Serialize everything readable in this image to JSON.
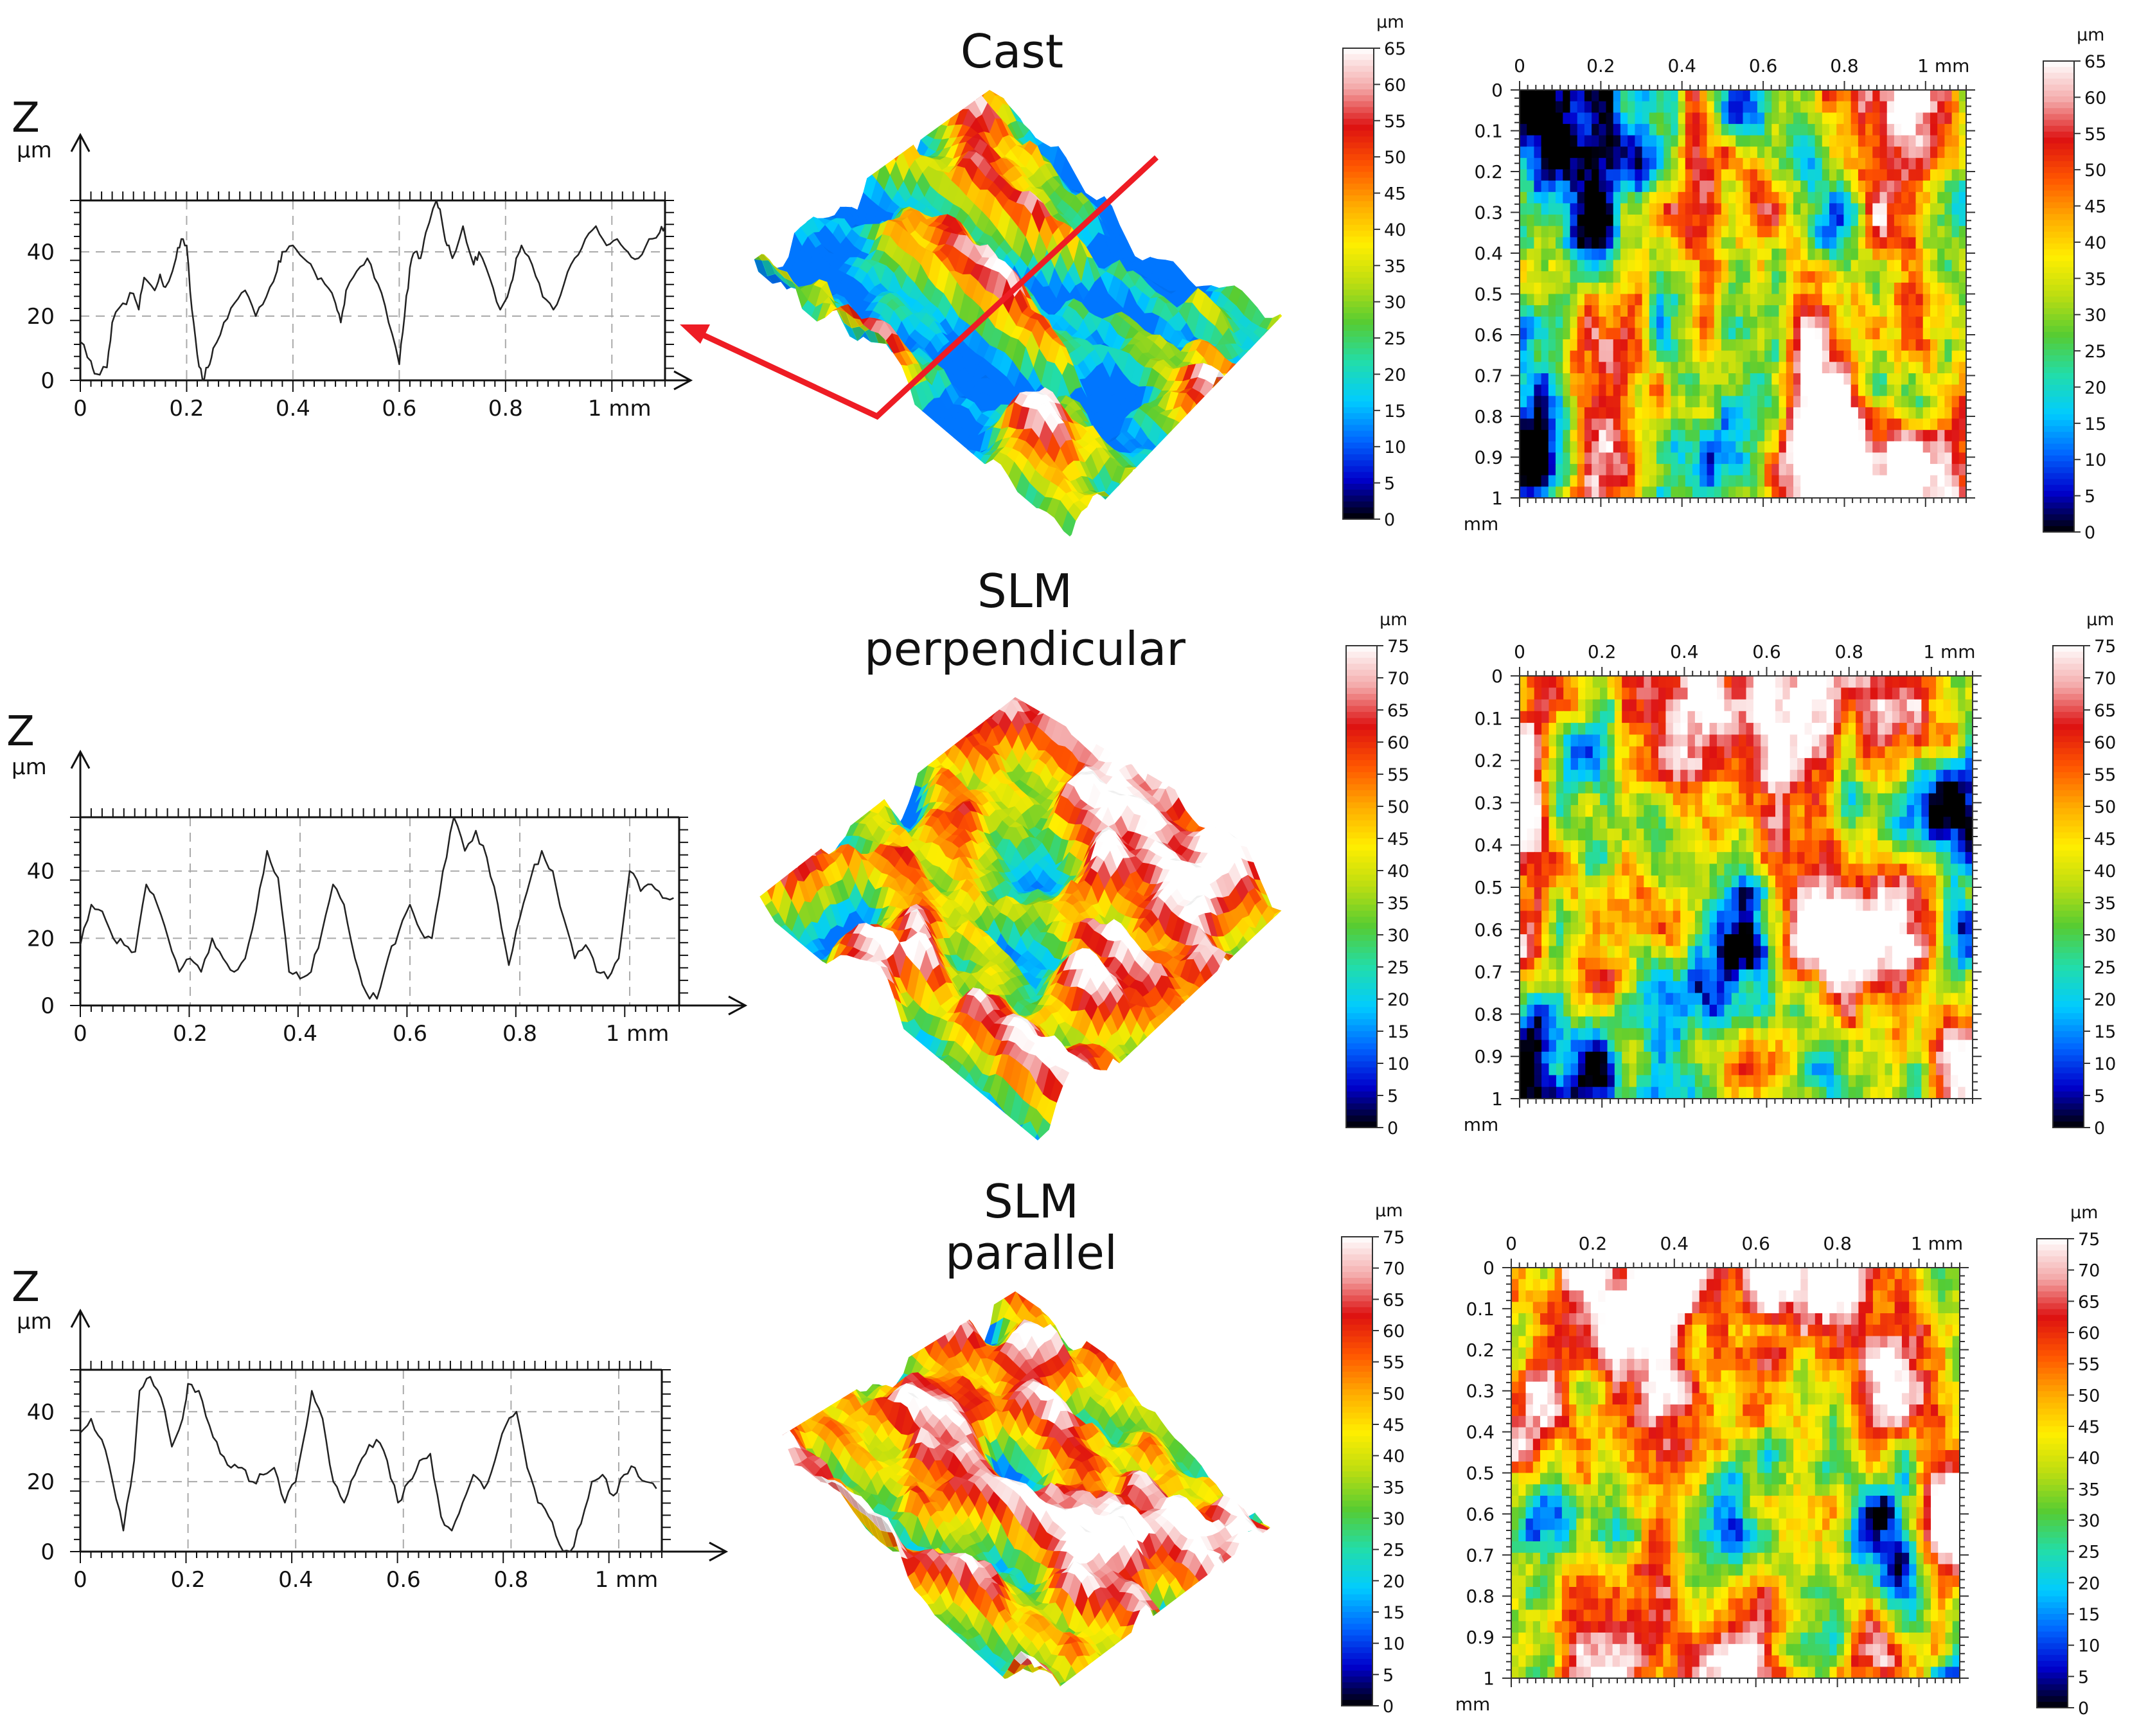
{
  "chart_data": [
    {
      "type": "line",
      "panel": "profile-cast",
      "title": "Cast",
      "ylabel": "Z",
      "yunit": "µm",
      "xlim": [
        0,
        1.1
      ],
      "ylim": [
        0,
        56
      ],
      "xticks": [
        0,
        0.2,
        0.4,
        0.6,
        0.8,
        1.0
      ],
      "xtick_labels": [
        "0",
        "0.2",
        "0.4",
        "0.6",
        "0.8",
        "1 mm"
      ],
      "yticks": [
        0,
        20,
        40
      ],
      "ytick_labels": [
        "0",
        "20",
        "40"
      ],
      "grid": true,
      "series": [
        {
          "x": [
            0,
            0.02,
            0.03,
            0.05,
            0.06,
            0.08,
            0.1,
            0.11,
            0.12,
            0.14,
            0.15,
            0.16,
            0.18,
            0.19,
            0.2,
            0.21,
            0.22,
            0.23,
            0.24,
            0.25,
            0.27,
            0.29,
            0.31,
            0.33,
            0.35,
            0.37,
            0.38,
            0.4,
            0.42,
            0.44,
            0.46,
            0.48,
            0.49,
            0.5,
            0.52,
            0.54,
            0.56,
            0.58,
            0.6,
            0.61,
            0.62,
            0.63,
            0.64,
            0.65,
            0.67,
            0.68,
            0.69,
            0.7,
            0.72,
            0.74,
            0.75,
            0.77,
            0.79,
            0.81,
            0.82,
            0.83,
            0.85,
            0.87,
            0.89,
            0.91,
            0.93,
            0.95,
            0.97,
            0.99,
            1.01,
            1.03,
            1.05,
            1.07,
            1.09,
            1.1
          ],
          "y": [
            12,
            6,
            2,
            4,
            18,
            24,
            27,
            22,
            32,
            28,
            33,
            29,
            38,
            44,
            42,
            22,
            8,
            0,
            4,
            10,
            18,
            24,
            28,
            20,
            26,
            34,
            40,
            42,
            38,
            34,
            30,
            24,
            18,
            28,
            34,
            38,
            30,
            18,
            5,
            20,
            35,
            40,
            38,
            46,
            56,
            50,
            42,
            38,
            48,
            36,
            40,
            32,
            22,
            30,
            38,
            42,
            36,
            26,
            22,
            30,
            38,
            44,
            48,
            42,
            44,
            40,
            38,
            44,
            46,
            48
          ]
        }
      ]
    },
    {
      "type": "line",
      "panel": "profile-slm-perpendicular",
      "title": "SLM perpendicular",
      "ylabel": "Z",
      "yunit": "µm",
      "xlim": [
        0,
        1.09
      ],
      "ylim": [
        0,
        56
      ],
      "xticks": [
        0,
        0.2,
        0.4,
        0.6,
        0.8,
        1.0
      ],
      "xtick_labels": [
        "0",
        "0.2",
        "0.4",
        "0.6",
        "0.8",
        "1 mm"
      ],
      "yticks": [
        0,
        20,
        40
      ],
      "ytick_labels": [
        "0",
        "20",
        "40"
      ],
      "grid": true,
      "series": [
        {
          "x": [
            0,
            0.02,
            0.04,
            0.06,
            0.08,
            0.1,
            0.12,
            0.14,
            0.16,
            0.18,
            0.2,
            0.22,
            0.24,
            0.26,
            0.28,
            0.3,
            0.32,
            0.34,
            0.36,
            0.38,
            0.4,
            0.42,
            0.44,
            0.46,
            0.48,
            0.5,
            0.52,
            0.54,
            0.56,
            0.58,
            0.6,
            0.62,
            0.64,
            0.66,
            0.68,
            0.7,
            0.72,
            0.74,
            0.76,
            0.78,
            0.8,
            0.82,
            0.84,
            0.86,
            0.88,
            0.9,
            0.92,
            0.94,
            0.96,
            0.98,
            1.0,
            1.02,
            1.04,
            1.06,
            1.08
          ],
          "y": [
            18,
            30,
            28,
            20,
            18,
            16,
            36,
            30,
            20,
            10,
            14,
            10,
            20,
            14,
            10,
            14,
            28,
            46,
            38,
            10,
            8,
            10,
            22,
            36,
            30,
            14,
            4,
            2,
            14,
            22,
            30,
            22,
            20,
            40,
            56,
            46,
            52,
            44,
            30,
            12,
            26,
            38,
            46,
            40,
            26,
            14,
            18,
            10,
            8,
            14,
            40,
            34,
            36,
            32,
            32
          ]
        }
      ]
    },
    {
      "type": "line",
      "panel": "profile-slm-parallel",
      "title": "SLM parallel",
      "ylabel": "Z",
      "yunit": "µm",
      "xlim": [
        0,
        1.08
      ],
      "ylim": [
        0,
        52
      ],
      "xticks": [
        0,
        0.2,
        0.4,
        0.6,
        0.8,
        1.0
      ],
      "xtick_labels": [
        "0",
        "0.2",
        "0.4",
        "0.6",
        "0.8",
        "1 mm"
      ],
      "yticks": [
        0,
        20,
        40
      ],
      "ytick_labels": [
        "0",
        "20",
        "40"
      ],
      "grid": true,
      "series": [
        {
          "x": [
            0,
            0.02,
            0.04,
            0.06,
            0.08,
            0.1,
            0.11,
            0.13,
            0.15,
            0.17,
            0.19,
            0.2,
            0.22,
            0.24,
            0.26,
            0.28,
            0.3,
            0.32,
            0.34,
            0.36,
            0.38,
            0.4,
            0.42,
            0.43,
            0.45,
            0.47,
            0.49,
            0.51,
            0.53,
            0.55,
            0.57,
            0.59,
            0.61,
            0.63,
            0.65,
            0.67,
            0.69,
            0.71,
            0.73,
            0.75,
            0.77,
            0.79,
            0.81,
            0.83,
            0.85,
            0.87,
            0.89,
            0.91,
            0.93,
            0.95,
            0.97,
            0.99,
            1.01,
            1.03,
            1.05,
            1.07
          ],
          "y": [
            34,
            38,
            32,
            20,
            6,
            26,
            46,
            50,
            44,
            30,
            38,
            48,
            46,
            36,
            28,
            24,
            24,
            20,
            22,
            24,
            14,
            20,
            36,
            46,
            38,
            20,
            14,
            22,
            28,
            32,
            26,
            14,
            20,
            26,
            28,
            10,
            6,
            14,
            22,
            18,
            26,
            36,
            40,
            24,
            14,
            10,
            2,
            0,
            8,
            20,
            22,
            16,
            22,
            24,
            20,
            18
          ]
        }
      ]
    },
    {
      "type": "heatmap",
      "panel": "heightmap-cast",
      "xlim": [
        0,
        1.1
      ],
      "ylim": [
        0,
        1.0
      ],
      "xtick_labels": [
        "0",
        "0.2",
        "0.4",
        "0.6",
        "0.8",
        "1 mm"
      ],
      "ytick_labels": [
        "0",
        "0.1",
        "0.2",
        "0.3",
        "0.4",
        "0.5",
        "0.6",
        "0.7",
        "0.8",
        "0.9",
        "1"
      ],
      "yunit": "mm",
      "colorbar_unit": "µm",
      "colorbar_range": [
        0,
        65
      ],
      "colorbar_ticks": [
        0,
        5,
        10,
        15,
        20,
        25,
        30,
        35,
        40,
        45,
        50,
        55,
        60,
        65
      ],
      "colorscale": [
        "#000000",
        "#0000cc",
        "#0066ff",
        "#00ccff",
        "#22ddaa",
        "#55cc33",
        "#bbdd11",
        "#ffee00",
        "#ffaa00",
        "#ff5500",
        "#dd1111",
        "#f4aaaa",
        "#ffffff"
      ],
      "levels_shown": [
        0,
        65
      ]
    },
    {
      "type": "heatmap",
      "panel": "heightmap-slm-perpendicular",
      "xlim": [
        0,
        1.1
      ],
      "ylim": [
        0,
        1.0
      ],
      "xtick_labels": [
        "0",
        "0.2",
        "0.4",
        "0.6",
        "0.8",
        "1 mm"
      ],
      "ytick_labels": [
        "0",
        "0.1",
        "0.2",
        "0.3",
        "0.4",
        "0.5",
        "0.6",
        "0.7",
        "0.8",
        "0.9",
        "1"
      ],
      "yunit": "mm",
      "colorbar_unit": "µm",
      "colorbar_range": [
        0,
        75
      ],
      "colorbar_ticks": [
        0,
        5,
        10,
        15,
        20,
        25,
        30,
        35,
        40,
        45,
        50,
        55,
        60,
        65,
        70,
        75
      ],
      "colorscale": [
        "#000000",
        "#0000cc",
        "#0066ff",
        "#00ccff",
        "#22ddaa",
        "#55cc33",
        "#bbdd11",
        "#ffee00",
        "#ffaa00",
        "#ff5500",
        "#dd1111",
        "#f4aaaa",
        "#ffffff"
      ]
    },
    {
      "type": "heatmap",
      "panel": "heightmap-slm-parallel",
      "xlim": [
        0,
        1.1
      ],
      "ylim": [
        0,
        1.0
      ],
      "xtick_labels": [
        "0",
        "0.2",
        "0.4",
        "0.6",
        "0.8",
        "1 mm"
      ],
      "ytick_labels": [
        "0",
        "0.1",
        "0.2",
        "0.3",
        "0.4",
        "0.5",
        "0.6",
        "0.7",
        "0.8",
        "0.9",
        "1"
      ],
      "yunit": "mm",
      "colorbar_unit": "µm",
      "colorbar_range": [
        0,
        75
      ],
      "colorbar_ticks": [
        0,
        5,
        10,
        15,
        20,
        25,
        30,
        35,
        40,
        45,
        50,
        55,
        60,
        65,
        70,
        75
      ],
      "colorscale": [
        "#000000",
        "#0000cc",
        "#0066ff",
        "#00ccff",
        "#22ddaa",
        "#55cc33",
        "#bbdd11",
        "#ffee00",
        "#ffaa00",
        "#ff5500",
        "#dd1111",
        "#f4aaaa",
        "#ffffff"
      ]
    }
  ],
  "titles": {
    "cast": "Cast",
    "slm_perpendicular_1": "SLM",
    "slm_perpendicular_2": "perpendicular",
    "slm_parallel_1": "SLM",
    "slm_parallel_2": "parallel"
  },
  "colors": {
    "annotation_arrow": "#ee1c24",
    "profile_line": "#222222",
    "grid": "#aaaaaa"
  },
  "surface_bias": {
    "cast": 0.0,
    "slm_perpendicular": 0.08,
    "slm_parallel": 0.2
  }
}
